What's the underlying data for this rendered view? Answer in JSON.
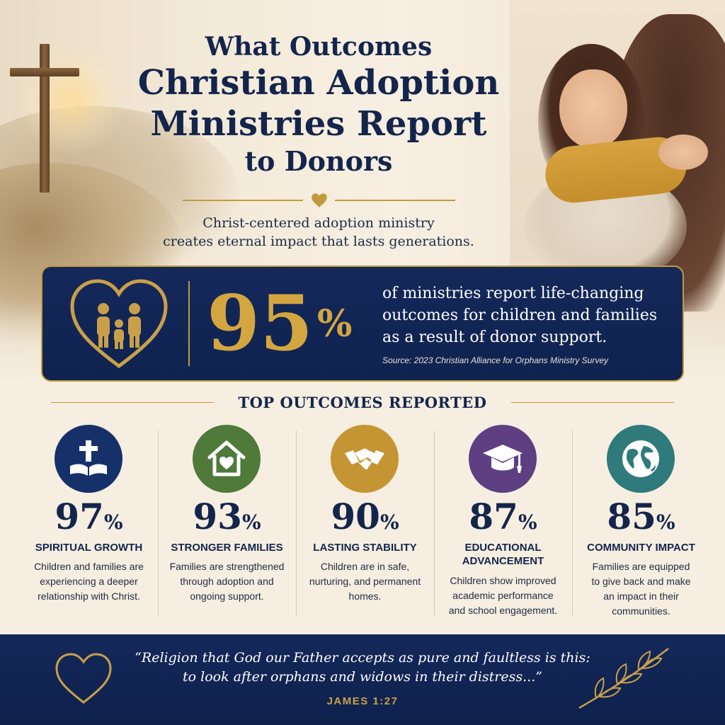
{
  "header": {
    "title_line1": "What Outcomes",
    "title_line2": "Christian Adoption",
    "title_line3": "Ministries Report",
    "title_line4": "to Donors",
    "subtitle_line1": "Christ-centered adoption ministry",
    "subtitle_line2": "creates eternal impact that lasts generations."
  },
  "highlight": {
    "value": "95",
    "unit": "%",
    "text_line1": "of ministries report life-changing",
    "text_line2": "outcomes for children and families",
    "text_line3": "as a result of donor support.",
    "source": "Source: 2023 Christian Alliance for Orphans Ministry Survey",
    "icon": "family-heart-icon"
  },
  "section": {
    "heading": "TOP OUTCOMES REPORTED"
  },
  "outcomes": [
    {
      "value": "97",
      "unit": "%",
      "title_line1": "SPIRITUAL GROWTH",
      "title_line2": "",
      "desc_line1": "Children and families are",
      "desc_line2": "experiencing a deeper",
      "desc_line3": "relationship with Christ.",
      "icon": "bible-cross-icon",
      "color": "#16306a"
    },
    {
      "value": "93",
      "unit": "%",
      "title_line1": "STRONGER FAMILIES",
      "title_line2": "",
      "desc_line1": "Families are strengthened",
      "desc_line2": "through adoption and",
      "desc_line3": "ongoing support.",
      "icon": "home-heart-icon",
      "color": "#4f7a3a"
    },
    {
      "value": "90",
      "unit": "%",
      "title_line1": "LASTING STABILITY",
      "title_line2": "",
      "desc_line1": "Children are in safe,",
      "desc_line2": "nurturing, and permanent",
      "desc_line3": "homes.",
      "icon": "handshake-icon",
      "color": "#c49532"
    },
    {
      "value": "87",
      "unit": "%",
      "title_line1": "EDUCATIONAL",
      "title_line2": "ADVANCEMENT",
      "desc_line1": "Children show improved",
      "desc_line2": "academic performance",
      "desc_line3": "and school engagement.",
      "icon": "graduation-cap-icon",
      "color": "#5d3f82"
    },
    {
      "value": "85",
      "unit": "%",
      "title_line1": "COMMUNITY IMPACT",
      "title_line2": "",
      "desc_line1": "Families are equipped",
      "desc_line2": "to give back and make",
      "desc_line3": "an impact in their",
      "desc_line4": "communities.",
      "icon": "globe-icon",
      "color": "#2f7a7a"
    }
  ],
  "footer": {
    "quote_line1": "“Religion that God our Father accepts as pure and faultless is this:",
    "quote_line2": "to look after orphans and widows in their distress...”",
    "reference": "JAMES 1:27",
    "accent_color": "#c9a04a"
  }
}
